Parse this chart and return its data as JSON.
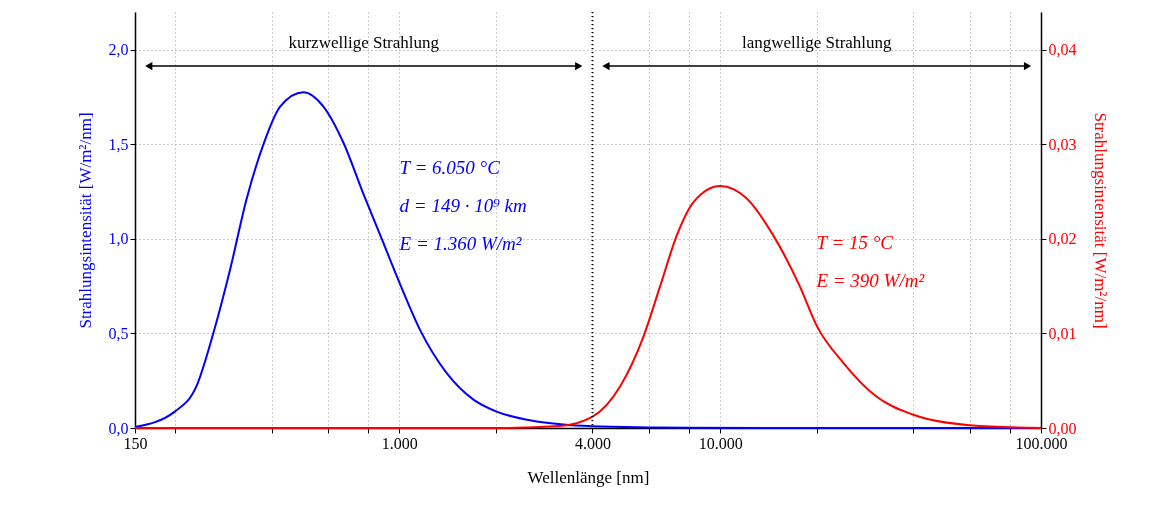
{
  "chart_data": {
    "type": "line",
    "xlabel": "Wellenlänge [nm]",
    "ylabel": "Strahlungsintensität [W/m²/nm]",
    "y2label": "Strahlungsintensität [W/m²/nm]",
    "log": "x",
    "grid": true,
    "marker": "none",
    "line_style": "solid",
    "xlim": [
      150,
      100000
    ],
    "xticks": [
      150,
      {
        "value": 200,
        "label": null
      },
      {
        "value": 400,
        "label": null
      },
      {
        "value": 600,
        "label": null
      },
      {
        "value": 800,
        "label": null
      },
      {
        "value": 1000,
        "label": "1.000"
      },
      {
        "value": 2000,
        "label": null
      },
      {
        "value": 4000,
        "label": "4.000"
      },
      {
        "value": 6000,
        "label": null
      },
      {
        "value": 8000,
        "label": null
      },
      {
        "value": 10000,
        "label": "10.000"
      },
      {
        "value": 20000,
        "label": null
      },
      {
        "value": 40000,
        "label": null
      },
      {
        "value": 60000,
        "label": null
      },
      {
        "value": 80000,
        "label": null
      },
      {
        "value": 100000,
        "label": "100.000"
      }
    ],
    "ylim": [
      0,
      2.2
    ],
    "yticks": [
      {
        "value": 0,
        "label": "0,0"
      },
      {
        "value": 0.5,
        "label": "0,5"
      },
      {
        "value": 1,
        "label": "1,0"
      },
      {
        "value": 1.5,
        "label": "1,5"
      },
      {
        "value": 2,
        "label": "2,0"
      }
    ],
    "y2lim": [
      0,
      0.044
    ],
    "y2ticks": [
      {
        "value": 0,
        "label": "0,00"
      },
      {
        "value": 0.01,
        "label": "0,01"
      },
      {
        "value": 0.02,
        "label": "0,02"
      },
      {
        "value": 0.03,
        "label": "0,03"
      },
      {
        "value": 0.04,
        "label": "0,04"
      }
    ],
    "series": [
      {
        "color": "#0000ff",
        "axis": "y",
        "x": [
          150,
          200,
          233,
          263,
          297,
          334,
          377,
          425,
          502,
          580,
          669,
          772,
          891,
          1000,
          1159,
          1405,
          1702,
          2000,
          2553,
          3241,
          4000,
          6000,
          8000,
          20000,
          100000
        ],
        "values": [
          0.005,
          0.088,
          0.22,
          0.5,
          0.84,
          1.21,
          1.5,
          1.7,
          1.776,
          1.7,
          1.51,
          1.24,
          0.98,
          0.77,
          0.52,
          0.29,
          0.15,
          0.088,
          0.041,
          0.018,
          0.009,
          0.003,
          0.001,
          0,
          0
        ]
      },
      {
        "color": "#ff0000",
        "axis": "y2",
        "x": [
          150,
          2000,
          3160,
          4000,
          4876,
          5770,
          6500,
          7330,
          8260,
          10000,
          12080,
          14620,
          17700,
          20000,
          24200,
          30760,
          40000,
          60000,
          100000
        ],
        "values": [
          0,
          0,
          0.0002,
          0.0012,
          0.0044,
          0.0097,
          0.015,
          0.0204,
          0.0239,
          0.0256,
          0.0243,
          0.0204,
          0.015,
          0.0108,
          0.0069,
          0.0033,
          0.0014,
          0.0003,
          0
        ]
      }
    ],
    "ref_lines": [
      {
        "axis": "x",
        "value": 4000,
        "color": "#000000",
        "line_style": "dotted"
      }
    ],
    "annotations": [
      "kurzwellige Strahlung",
      "langwellige Strahlung",
      "T = 6.050 °C\nd = 149 · 10⁹ km\nE = 1.360 W/m²",
      "T = 15 °C\nE = 390 W/m²"
    ]
  }
}
